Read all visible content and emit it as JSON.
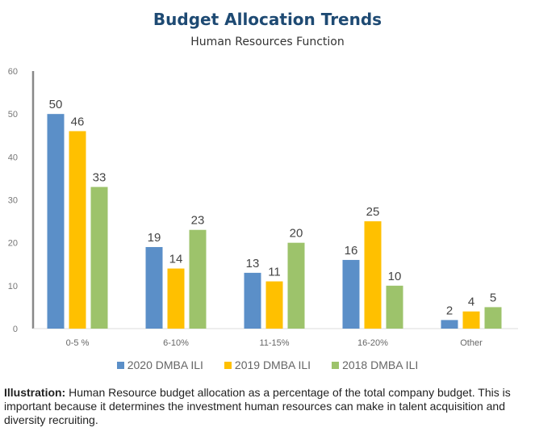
{
  "chart_data": {
    "type": "bar",
    "title": "Budget Allocation Trends",
    "subtitle": "Human Resources Function",
    "xlabel": "",
    "ylabel": "",
    "ylim": [
      0,
      60
    ],
    "yticks": [
      0,
      10,
      20,
      30,
      40,
      50,
      60
    ],
    "categories": [
      "0-5 %",
      "6-10%",
      "11-15%",
      "16-20%",
      "Other"
    ],
    "series": [
      {
        "name": "2020 DMBA ILI",
        "color": "#5b8fc8",
        "values": [
          50,
          19,
          13,
          16,
          2
        ]
      },
      {
        "name": "2019 DMBA ILI",
        "color": "#ffc000",
        "values": [
          46,
          14,
          11,
          25,
          4
        ]
      },
      {
        "name": "2018 DMBA ILI",
        "color": "#9dc36b",
        "values": [
          33,
          23,
          20,
          10,
          5
        ]
      }
    ],
    "legend": "bottom",
    "grid": false,
    "data_labels": true
  },
  "caption": {
    "label": "Illustration:",
    "text": " Human Resource budget allocation as a percentage of the total company budget. This is important because it determines the investment human resources can make in talent acquisition and diversity recruiting."
  }
}
